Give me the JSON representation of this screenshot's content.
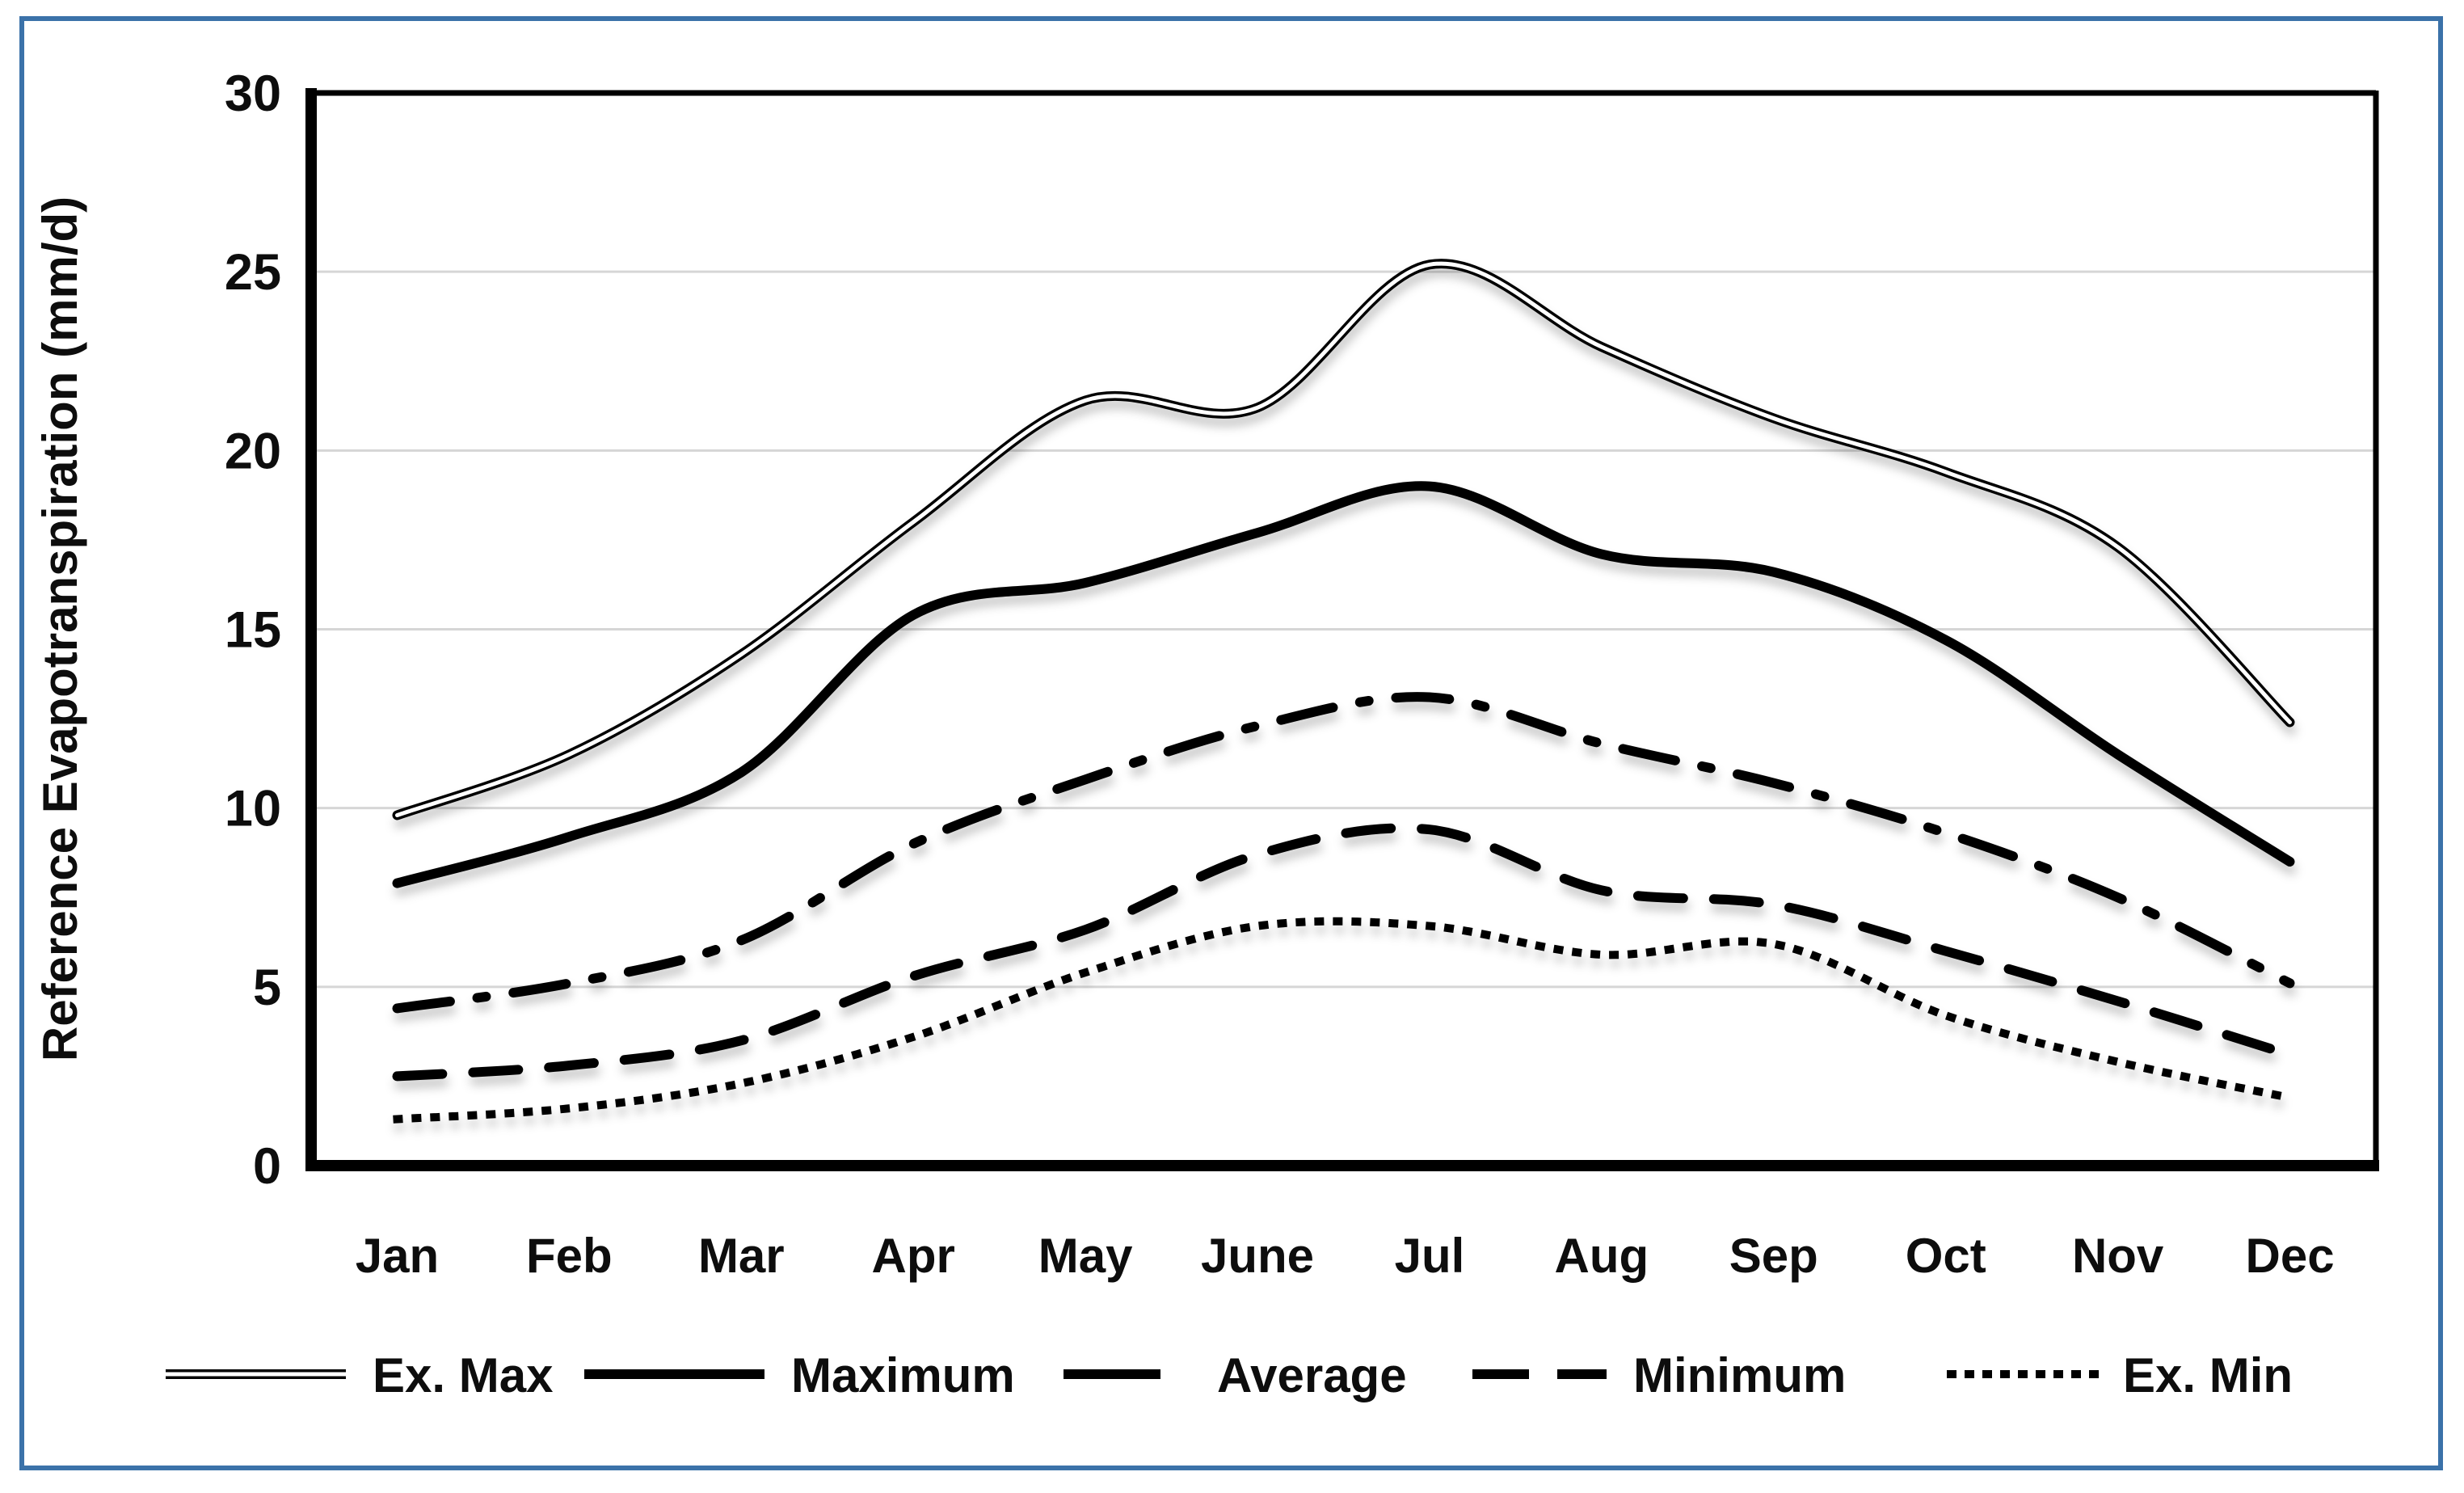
{
  "figure": {
    "border_color": "#3b72a9",
    "background_color": "#ffffff",
    "line_color": "#000000",
    "gridline_color": "#d6d6d6"
  },
  "chart_data": {
    "type": "line",
    "title": "",
    "xlabel": "",
    "ylabel": "Reference Evapotranspiration  (mm/d)",
    "ylim": [
      0,
      30
    ],
    "yticks": [
      0,
      5,
      10,
      15,
      20,
      25,
      30
    ],
    "grid": "horizontal-only",
    "smoothed": true,
    "legend_position": "bottom",
    "categories": [
      "Jan",
      "Feb",
      "Mar",
      "Apr",
      "May",
      "June",
      "Jul",
      "Aug",
      "Sep",
      "Oct",
      "Nov",
      "Dec"
    ],
    "series": [
      {
        "name": "Ex. Max",
        "line_style": "double",
        "color": "#000000",
        "values": [
          9.8,
          11.5,
          14.3,
          18.0,
          21.4,
          21.2,
          25.2,
          22.9,
          20.9,
          19.4,
          17.3,
          12.4
        ]
      },
      {
        "name": "Maximum",
        "line_style": "solid",
        "color": "#000000",
        "values": [
          7.9,
          9.2,
          11.0,
          15.4,
          16.3,
          17.7,
          19.0,
          17.1,
          16.6,
          14.7,
          11.5,
          8.5
        ]
      },
      {
        "name": "Average",
        "line_style": "dash-dot",
        "color": "#000000",
        "values": [
          4.4,
          5.1,
          6.3,
          9.0,
          10.8,
          12.3,
          13.1,
          11.8,
          10.7,
          9.3,
          7.5,
          5.1
        ]
      },
      {
        "name": "Minimum",
        "line_style": "dashed",
        "color": "#000000",
        "values": [
          2.5,
          2.8,
          3.5,
          5.3,
          6.6,
          8.7,
          9.4,
          7.7,
          7.3,
          6.0,
          4.6,
          3.1
        ]
      },
      {
        "name": "Ex. Min",
        "line_style": "dotted",
        "color": "#000000",
        "values": [
          1.3,
          1.6,
          2.3,
          3.6,
          5.4,
          6.7,
          6.7,
          5.9,
          6.2,
          4.2,
          2.9,
          1.9
        ]
      }
    ]
  }
}
